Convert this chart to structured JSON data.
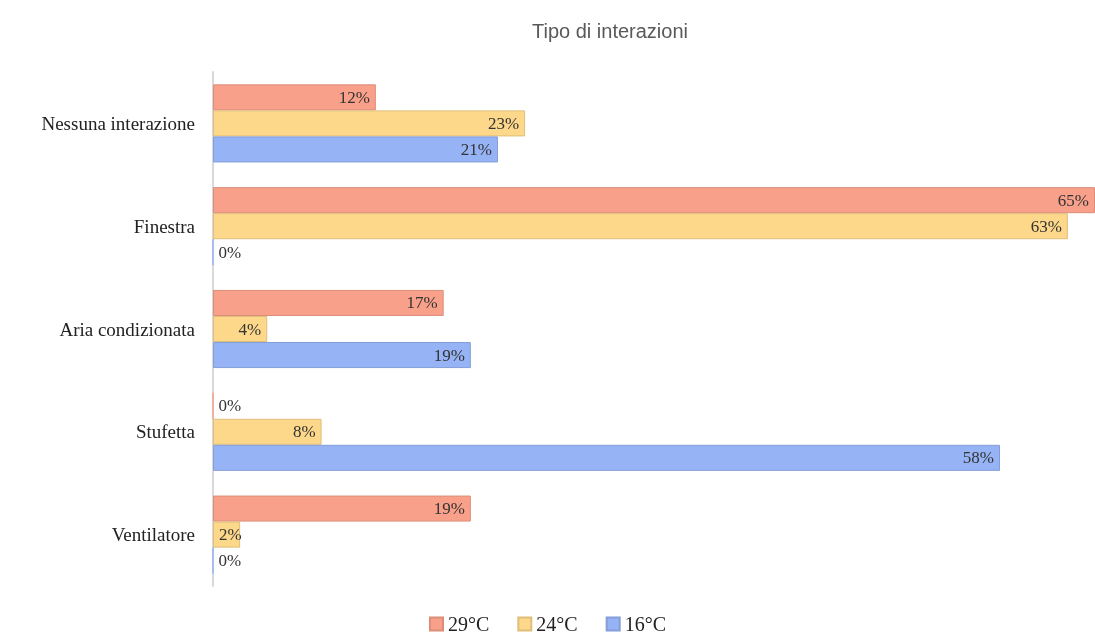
{
  "chart_data": {
    "type": "bar",
    "orientation": "horizontal",
    "title": "Tipo di interazioni",
    "categories": [
      "Nessuna interazione",
      "Finestra",
      "Aria condizionata",
      "Stufetta",
      "Ventilatore"
    ],
    "series": [
      {
        "name": "29°C",
        "color": "#f9a08a",
        "values": [
          12,
          65,
          17,
          0,
          19
        ],
        "value_labels": [
          "12%",
          "65%",
          "17%",
          "0%",
          "19%"
        ]
      },
      {
        "name": "24°C",
        "color": "#fdd88a",
        "values": [
          23,
          63,
          4,
          8,
          2
        ],
        "value_labels": [
          "23%",
          "63%",
          "4%",
          "8%",
          "2%"
        ]
      },
      {
        "name": "16°C",
        "color": "#95b3f5",
        "values": [
          21,
          0,
          19,
          58,
          0
        ],
        "value_labels": [
          "21%",
          "0%",
          "19%",
          "58%",
          "0%"
        ]
      }
    ],
    "xlim": [
      0,
      65
    ],
    "tick_labels": "y",
    "grid": false,
    "legend": "bottom"
  }
}
